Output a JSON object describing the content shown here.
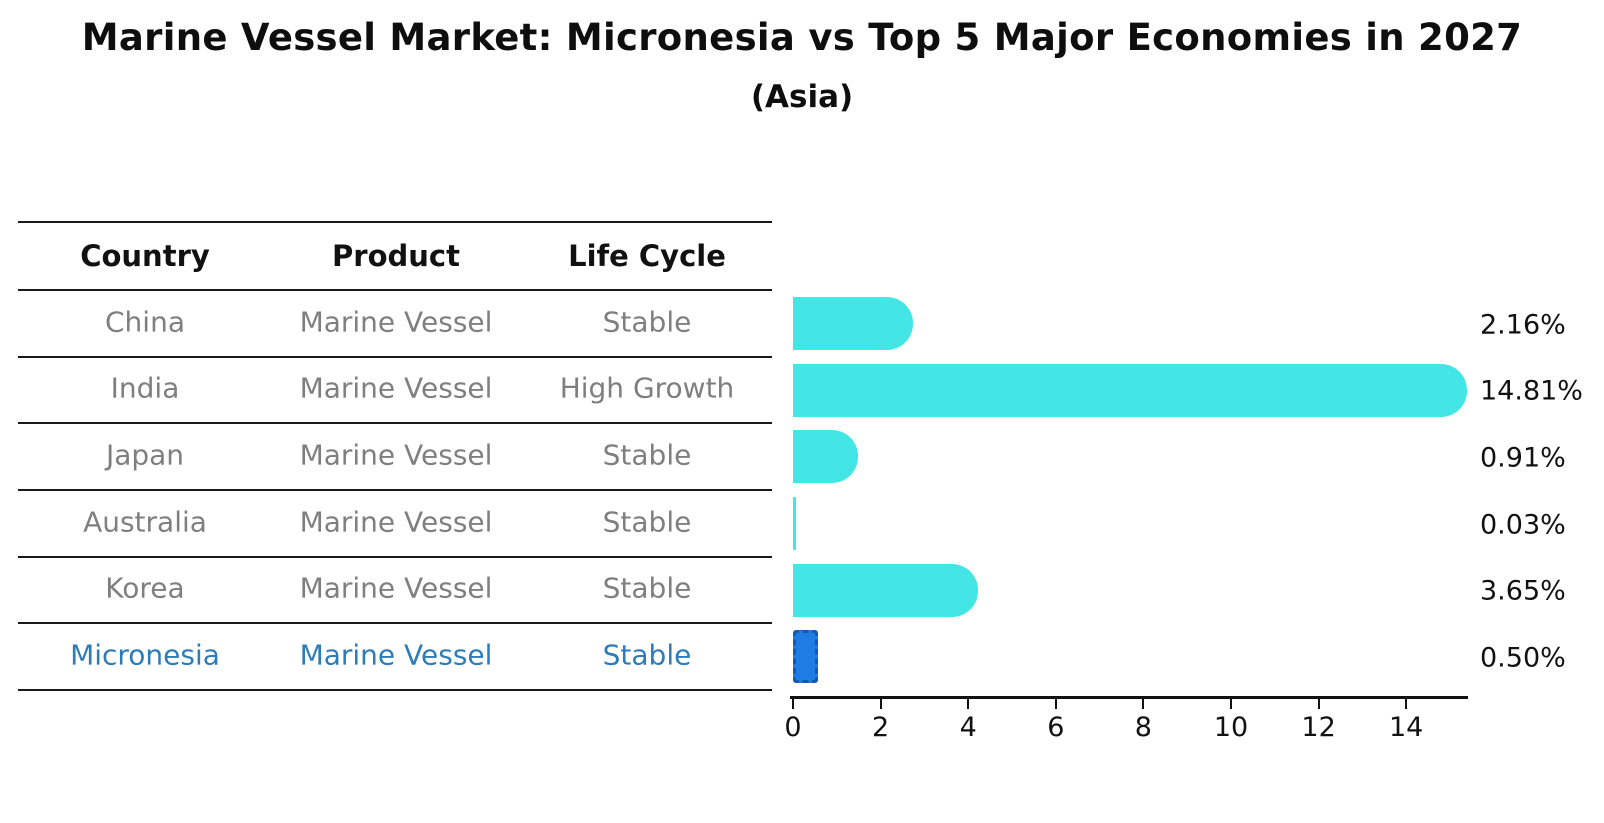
{
  "title": "Marine Vessel Market: Micronesia vs Top 5 Major Economies in 2027",
  "subtitle": "(Asia)",
  "table": {
    "headers": [
      "Country",
      "Product",
      "Life Cycle"
    ],
    "rows": [
      {
        "country": "China",
        "product": "Marine Vessel",
        "life_cycle": "Stable",
        "highlighted": false
      },
      {
        "country": "India",
        "product": "Marine Vessel",
        "life_cycle": "High Growth",
        "highlighted": false
      },
      {
        "country": "Japan",
        "product": "Marine Vessel",
        "life_cycle": "Stable",
        "highlighted": false
      },
      {
        "country": "Australia",
        "product": "Marine Vessel",
        "life_cycle": "Stable",
        "highlighted": false
      },
      {
        "country": "Korea",
        "product": "Marine Vessel",
        "life_cycle": "Stable",
        "highlighted": false
      },
      {
        "country": "Micronesia",
        "product": "Marine Vessel",
        "life_cycle": "Stable",
        "highlighted": true
      }
    ]
  },
  "chart_data": {
    "type": "bar",
    "orientation": "horizontal",
    "title": "Marine Vessel Market: Micronesia vs Top 5 Major Economies in 2027",
    "subtitle": "(Asia)",
    "categories": [
      "China",
      "India",
      "Japan",
      "Australia",
      "Korea",
      "Micronesia"
    ],
    "values": [
      2.16,
      14.81,
      0.91,
      0.03,
      3.65,
      0.5
    ],
    "value_labels": [
      "2.16%",
      "14.81%",
      "0.91%",
      "0.03%",
      "3.65%",
      "0.50%"
    ],
    "x_ticks": [
      0,
      2,
      4,
      6,
      8,
      10,
      12,
      14
    ],
    "xlim": [
      0,
      15.4
    ],
    "grid": false,
    "legend": "none",
    "highlight_index": 5
  },
  "colors": {
    "bar": "#44E5E5",
    "highlight_bar_fill": "#1F7CE4",
    "highlight_bar_border": "#1659B3",
    "highlight_text": "#2d7cba",
    "row_text": "#7f7f7f",
    "header_text": "#111111",
    "axis": "#111111",
    "divider": "#1a1a1a"
  }
}
